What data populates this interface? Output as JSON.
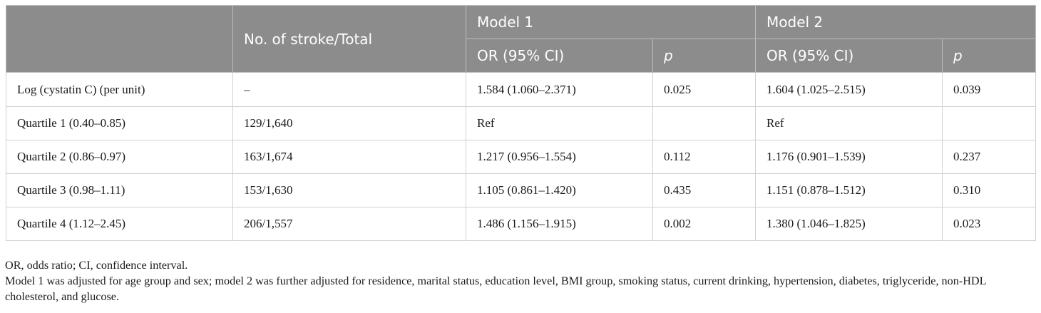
{
  "table": {
    "header_row1": {
      "col_stroke": "No. of stroke/Total",
      "model1": "Model 1",
      "model2": "Model 2"
    },
    "header_row2": {
      "or1": "OR (95% CI)",
      "p1": "p",
      "or2": "OR (95% CI)",
      "p2": "p"
    },
    "rows": [
      {
        "label": "Log (cystatin C) (per unit)",
        "stroke": "–",
        "or1": "1.584 (1.060–2.371)",
        "p1": "0.025",
        "or2": "1.604 (1.025–2.515)",
        "p2": "0.039"
      },
      {
        "label": "Quartile 1 (0.40–0.85)",
        "stroke": "129/1,640",
        "or1": "Ref",
        "p1": "",
        "or2": "Ref",
        "p2": ""
      },
      {
        "label": "Quartile 2 (0.86–0.97)",
        "stroke": "163/1,674",
        "or1": "1.217 (0.956–1.554)",
        "p1": "0.112",
        "or2": "1.176 (0.901–1.539)",
        "p2": "0.237"
      },
      {
        "label": "Quartile 3 (0.98–1.11)",
        "stroke": "153/1,630",
        "or1": "1.105 (0.861–1.420)",
        "p1": "0.435",
        "or2": "1.151 (0.878–1.512)",
        "p2": "0.310"
      },
      {
        "label": "Quartile 4 (1.12–2.45)",
        "stroke": "206/1,557",
        "or1": "1.486 (1.156–1.915)",
        "p1": "0.002",
        "or2": "1.380 (1.046–1.825)",
        "p2": "0.023"
      }
    ]
  },
  "notes": {
    "abbrev": "OR, odds ratio; CI, confidence interval.",
    "models": "Model 1 was adjusted for age group and sex; model 2 was further adjusted for residence, marital status, education level, BMI group, smoking status, current drinking, hypertension, diabetes, triglyceride, non-HDL cholesterol, and glucose."
  }
}
